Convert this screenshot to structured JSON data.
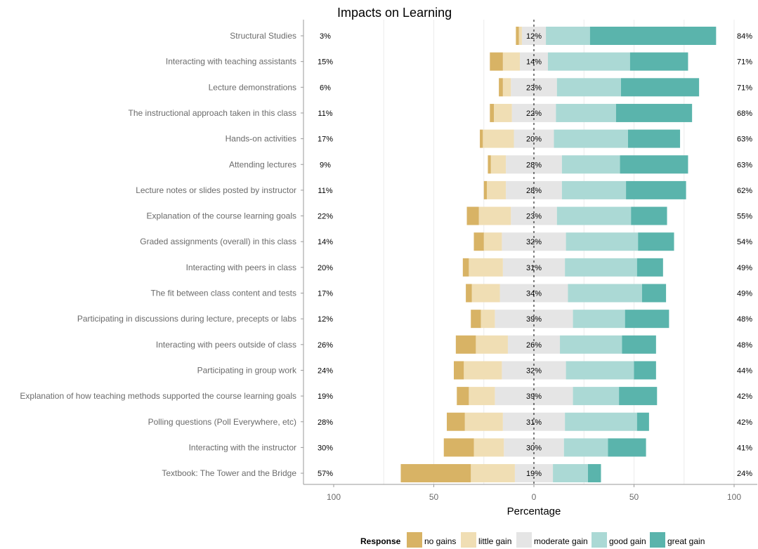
{
  "chart_data": {
    "type": "bar",
    "title": "Impacts on Learning",
    "xlabel": "Percentage",
    "ylabel": "",
    "xlim": [
      -100,
      100
    ],
    "x_ticks": [
      {
        "value": -100,
        "label": "100"
      },
      {
        "value": -50,
        "label": "50"
      },
      {
        "value": 0,
        "label": "0"
      },
      {
        "value": 50,
        "label": "50"
      },
      {
        "value": 100,
        "label": "100"
      }
    ],
    "legend": {
      "title": "Response",
      "position": "bottom",
      "items": [
        {
          "name": "no gains",
          "color": "#D8B365"
        },
        {
          "name": "little gain",
          "color": "#F0DEB4"
        },
        {
          "name": "moderate gain",
          "color": "#E5E5E5"
        },
        {
          "name": "good gain",
          "color": "#ABD9D5"
        },
        {
          "name": "great gain",
          "color": "#5AB4AC"
        }
      ]
    },
    "categories": [
      "Structural Studies",
      "Interacting with teaching assistants",
      "Lecture demonstrations",
      "The instructional approach taken in this class",
      "Hands-on activities",
      "Attending lectures",
      "Lecture notes or slides posted by instructor",
      "Explanation of the course learning goals",
      "Graded assignments (overall) in this class",
      "Interacting with peers in class",
      "The fit between class content and tests",
      "Participating in discussions during lecture, precepts or labs",
      "Interacting with peers outside of class",
      "Participating in group work",
      "Explanation of how teaching methods supported the course learning goals",
      "Polling questions (Poll Everywhere, etc)",
      "Interacting with the instructor",
      "Textbook: The Tower and the Bridge"
    ],
    "series": [
      {
        "name": "no gains",
        "values": [
          1.5,
          6.5,
          2,
          2,
          1.5,
          1.5,
          1.5,
          6,
          5,
          3,
          3,
          5,
          10,
          5,
          6,
          9,
          15,
          35
        ]
      },
      {
        "name": "little gain",
        "values": [
          1.5,
          8.5,
          4,
          9,
          15.5,
          7.5,
          9.5,
          16,
          9,
          17,
          14,
          7,
          16,
          19,
          13,
          19,
          15,
          22
        ]
      },
      {
        "name": "moderate gain",
        "values": [
          12,
          14,
          23,
          22,
          20,
          28,
          28,
          23,
          32,
          31,
          34,
          39,
          26,
          32,
          39,
          31,
          30,
          19
        ]
      },
      {
        "name": "good gain",
        "values": [
          22,
          41,
          32,
          30,
          37,
          29,
          32,
          37,
          36,
          36,
          37,
          26,
          31,
          34,
          23,
          36,
          22,
          17.5
        ]
      },
      {
        "name": "great gain",
        "values": [
          63,
          29,
          39,
          38,
          26,
          34,
          30,
          18,
          18,
          13,
          12,
          22,
          17,
          11,
          19,
          6,
          19,
          6.5
        ]
      }
    ],
    "left_labels": [
      "3%",
      "15%",
      "6%",
      "11%",
      "17%",
      "9%",
      "11%",
      "22%",
      "14%",
      "20%",
      "17%",
      "12%",
      "26%",
      "24%",
      "19%",
      "28%",
      "30%",
      "57%"
    ],
    "center_labels": [
      "12%",
      "14%",
      "23%",
      "22%",
      "20%",
      "28%",
      "28%",
      "23%",
      "32%",
      "31%",
      "34%",
      "39%",
      "26%",
      "32%",
      "39%",
      "31%",
      "30%",
      "19%"
    ],
    "right_labels": [
      "84%",
      "71%",
      "71%",
      "68%",
      "63%",
      "63%",
      "62%",
      "55%",
      "54%",
      "49%",
      "49%",
      "48%",
      "48%",
      "44%",
      "42%",
      "42%",
      "41%",
      "24%"
    ],
    "grid": true
  }
}
